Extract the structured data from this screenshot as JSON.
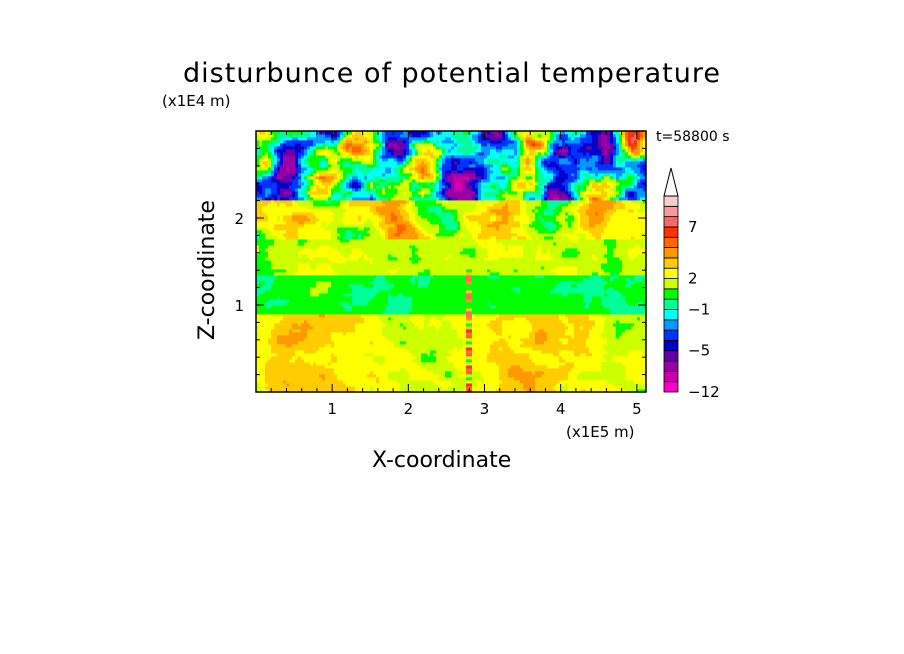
{
  "chart_data": {
    "type": "heatmap",
    "title": "disturbunce of potential temperature",
    "xlabel": "X-coordinate",
    "ylabel": "Z-coordinate",
    "x_unit": "(x1E5 m)",
    "y_unit": "(x1E4 m)",
    "time_label": "t=58800 s",
    "x_ticks": [
      1,
      2,
      3,
      4,
      5
    ],
    "y_ticks": [
      1,
      2
    ],
    "xlim": [
      0,
      5.12
    ],
    "ylim": [
      0,
      3.0
    ],
    "colorbar": {
      "levels": [
        -12,
        -10,
        -8,
        -6,
        -5,
        -4,
        -3,
        -2,
        -1,
        0,
        1,
        2,
        3,
        4,
        5,
        6,
        7,
        8,
        9,
        10
      ],
      "tick_labels": [
        "7",
        "2",
        "−1",
        "−5",
        "−12"
      ],
      "tick_values": [
        7,
        2,
        -1,
        -5,
        -12
      ],
      "colors": [
        "#ff00cc",
        "#cc00aa",
        "#9900aa",
        "#6600aa",
        "#0000cc",
        "#0033ff",
        "#0099ff",
        "#00ffff",
        "#00ff99",
        "#00ff00",
        "#ccff00",
        "#ffff00",
        "#ffcc00",
        "#ff9900",
        "#ff6600",
        "#ff3300",
        "#ff6666",
        "#ff9999",
        "#ffcccc"
      ],
      "extend": "max"
    },
    "field_description_layers": [
      {
        "z_range": [
          0,
          0.9
        ],
        "dominant": "yellow-orange"
      },
      {
        "z_range": [
          0.9,
          1.4
        ],
        "dominant": "green"
      },
      {
        "z_range": [
          1.4,
          2.2
        ],
        "dominant": "yellow-orange"
      },
      {
        "z_range": [
          2.2,
          3.0
        ],
        "dominant": "blue-orange-mixed"
      }
    ]
  }
}
